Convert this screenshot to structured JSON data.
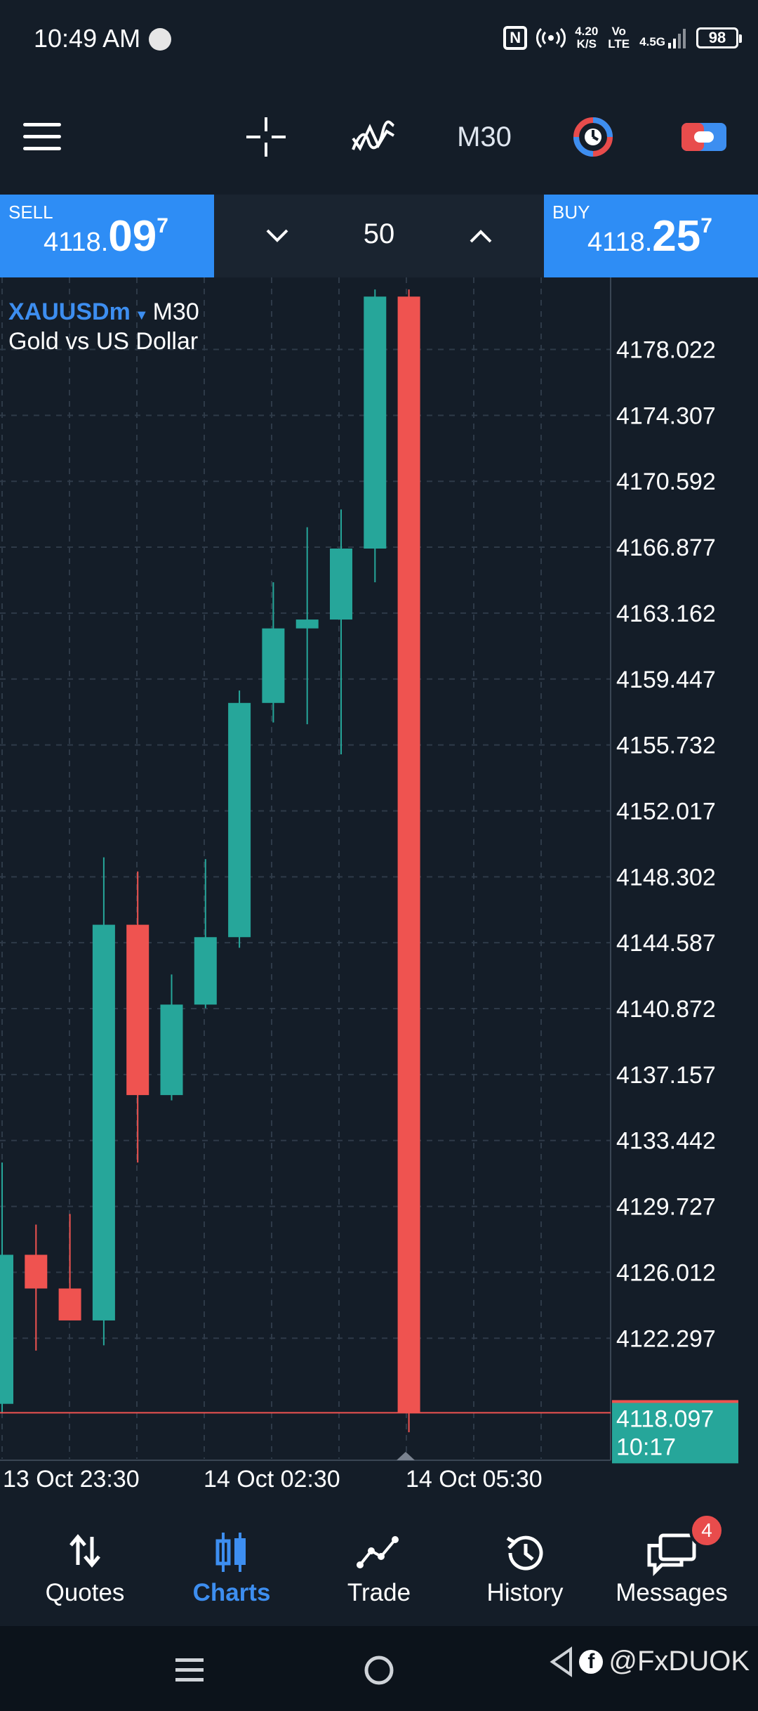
{
  "status_bar": {
    "time": "10:49 AM",
    "nfc": "N",
    "speed_value": "4.20",
    "speed_unit": "K/S",
    "volte_top": "Vo",
    "volte_bottom": "LTE",
    "network": "4.5G",
    "battery": "98"
  },
  "toolbar": {
    "timeframe": "M30",
    "icons": [
      "menu-icon",
      "crosshair-icon",
      "indicators-icon",
      "timeframe-label",
      "one-click-trading-icon",
      "toggle-icon"
    ]
  },
  "trade": {
    "sell_label": "SELL",
    "sell_small": "4118.",
    "sell_big": "09",
    "sell_sup": "7",
    "buy_label": "BUY",
    "buy_small": "4118.",
    "buy_big": "25",
    "buy_sup": "7",
    "lot": "50"
  },
  "chart_data": {
    "type": "candlestick",
    "symbol": "XAUUSDm",
    "timeframe": "M30",
    "description": "Gold vs US Dollar",
    "y_ticks": [
      "4178.022",
      "4174.307",
      "4170.592",
      "4166.877",
      "4163.162",
      "4159.447",
      "4155.732",
      "4152.017",
      "4148.302",
      "4144.587",
      "4140.872",
      "4137.157",
      "4133.442",
      "4129.727",
      "4126.012",
      "4122.297"
    ],
    "ylim": [
      4115.5,
      4182
    ],
    "x_labels": [
      "13 Oct 23:30",
      "14 Oct 02:30",
      "14 Oct 05:30"
    ],
    "current_price": "4118.097",
    "countdown": "10:17",
    "candles": [
      {
        "o": 4118.6,
        "h": 4132.2,
        "l": 4118.1,
        "c": 4127.0
      },
      {
        "o": 4127.0,
        "h": 4128.7,
        "l": 4121.6,
        "c": 4125.1
      },
      {
        "o": 4125.1,
        "h": 4129.3,
        "l": 4123.3,
        "c": 4123.3
      },
      {
        "o": 4123.3,
        "h": 4149.4,
        "l": 4121.9,
        "c": 4145.6
      },
      {
        "o": 4145.6,
        "h": 4148.6,
        "l": 4132.2,
        "c": 4136.0
      },
      {
        "o": 4136.0,
        "h": 4142.8,
        "l": 4135.7,
        "c": 4141.1
      },
      {
        "o": 4141.1,
        "h": 4149.3,
        "l": 4140.9,
        "c": 4144.9
      },
      {
        "o": 4144.9,
        "h": 4158.8,
        "l": 4144.3,
        "c": 4158.1
      },
      {
        "o": 4158.1,
        "h": 4164.9,
        "l": 4157.0,
        "c": 4162.3
      },
      {
        "o": 4162.3,
        "h": 4168.0,
        "l": 4156.9,
        "c": 4162.8
      },
      {
        "o": 4162.8,
        "h": 4169.0,
        "l": 4155.2,
        "c": 4166.8
      },
      {
        "o": 4166.8,
        "h": 4181.4,
        "l": 4164.9,
        "c": 4181.0
      },
      {
        "o": 4181.0,
        "h": 4181.4,
        "l": 4117.0,
        "c": 4118.1
      }
    ],
    "colors": {
      "bull": "#26a69a",
      "bear": "#ef5350",
      "price_line": "#ef5350",
      "price_tag": "#26a69a",
      "grid": "#2e3a48"
    },
    "grid": true
  },
  "bottom_nav": {
    "items": [
      {
        "label": "Quotes",
        "icon": "quotes-icon"
      },
      {
        "label": "Charts",
        "icon": "charts-icon"
      },
      {
        "label": "Trade",
        "icon": "trade-icon"
      },
      {
        "label": "History",
        "icon": "history-icon"
      },
      {
        "label": "Messages",
        "icon": "messages-icon"
      }
    ],
    "active": "Charts",
    "messages_badge": "4"
  },
  "system_nav": {
    "watermark": "@FxDUOK"
  }
}
